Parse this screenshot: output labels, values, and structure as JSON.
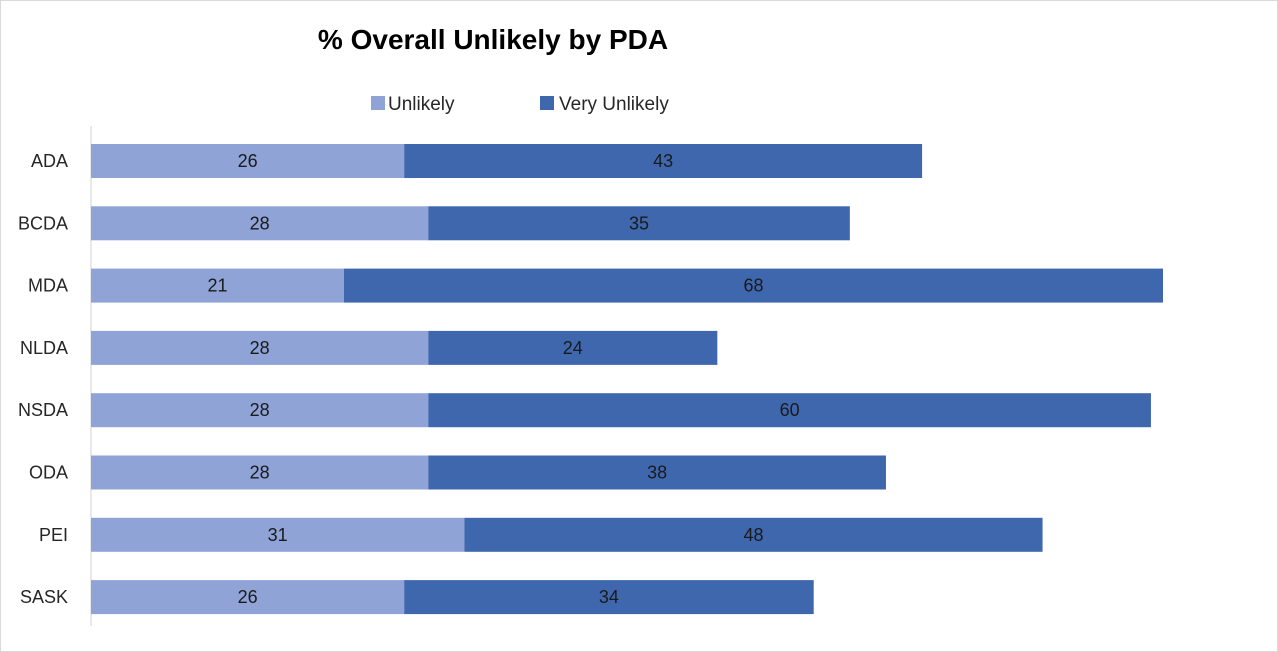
{
  "chart_data": {
    "type": "bar",
    "orientation": "horizontal",
    "stacked": true,
    "title": "% Overall Unlikely by PDA",
    "xlabel": "",
    "ylabel": "",
    "categories": [
      "ADA",
      "BCDA",
      "MDA",
      "NLDA",
      "NSDA",
      "ODA",
      "PEI",
      "SASK"
    ],
    "series": [
      {
        "name": "Unlikely",
        "color": "#8FA3D6",
        "values": [
          26,
          28,
          21,
          28,
          28,
          28,
          31,
          26
        ]
      },
      {
        "name": "Very Unlikely",
        "color": "#3F67AE",
        "values": [
          43,
          35,
          68,
          24,
          60,
          38,
          48,
          34
        ]
      }
    ],
    "xlim": [
      0,
      89
    ],
    "grid": false,
    "legend_position": "top",
    "data_labels": true
  }
}
